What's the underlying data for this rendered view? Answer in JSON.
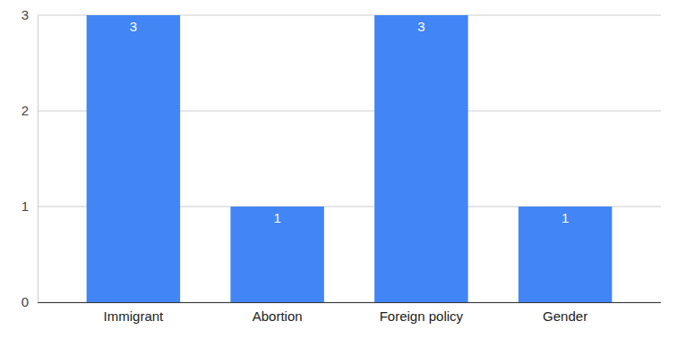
{
  "chart_data": {
    "type": "bar",
    "categories": [
      "Immigrant",
      "Abortion",
      "Foreign policy",
      "Gender"
    ],
    "values": [
      3,
      1,
      3,
      1
    ],
    "color": "#4285f4",
    "ylim": [
      0,
      3
    ],
    "yticks": [
      0,
      1,
      2,
      3
    ],
    "grid": true,
    "data_labels": true
  }
}
